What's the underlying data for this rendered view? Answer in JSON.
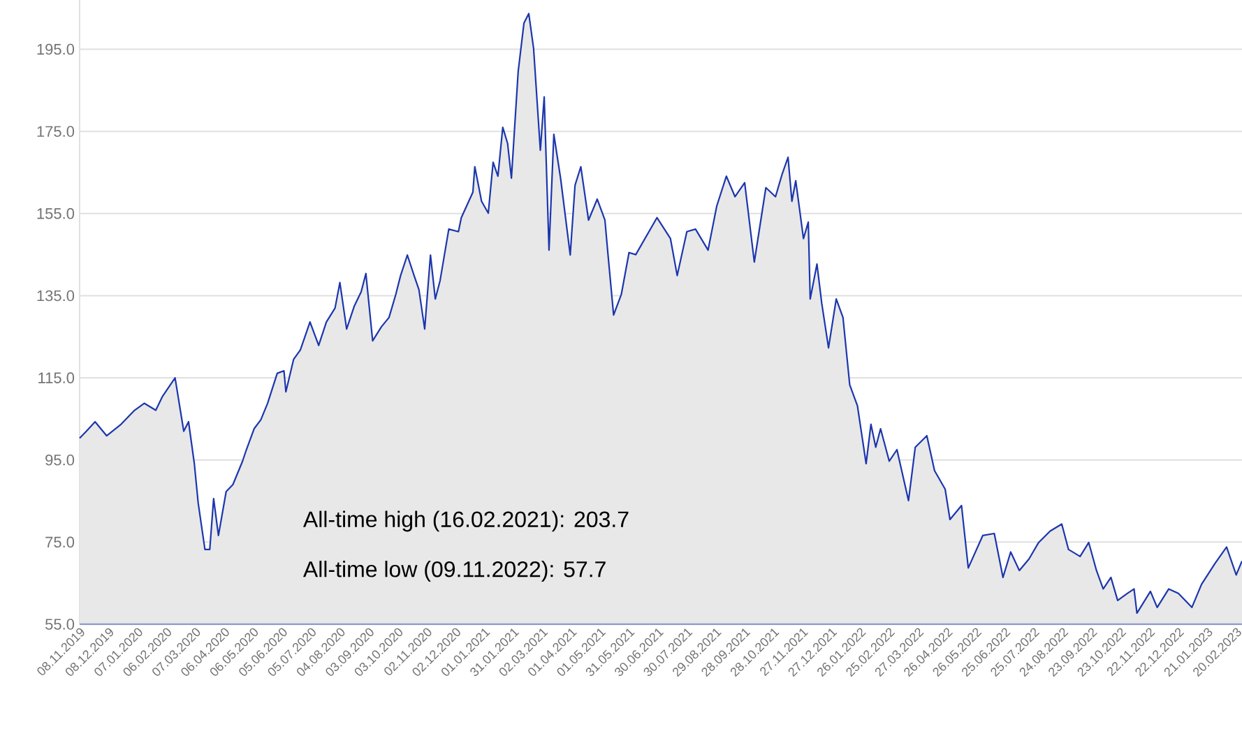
{
  "chart_data": {
    "type": "area",
    "x": [
      "2019-11-08",
      "2019-11-15",
      "2019-11-24",
      "2019-12-06",
      "2019-12-21",
      "2020-01-04",
      "2020-01-14",
      "2020-01-26",
      "2020-02-02",
      "2020-02-15",
      "2020-02-24",
      "2020-02-29",
      "2020-03-06",
      "2020-03-10",
      "2020-03-17",
      "2020-03-22",
      "2020-03-26",
      "2020-03-31",
      "2020-04-08",
      "2020-04-15",
      "2020-04-25",
      "2020-04-29",
      "2020-05-07",
      "2020-05-14",
      "2020-05-21",
      "2020-05-31",
      "2020-06-07",
      "2020-06-09",
      "2020-06-17",
      "2020-06-24",
      "2020-07-04",
      "2020-07-13",
      "2020-07-21",
      "2020-07-30",
      "2020-08-04",
      "2020-08-11",
      "2020-08-19",
      "2020-08-26",
      "2020-08-31",
      "2020-09-07",
      "2020-09-16",
      "2020-09-24",
      "2020-10-01",
      "2020-10-06",
      "2020-10-13",
      "2020-10-20",
      "2020-10-25",
      "2020-10-31",
      "2020-11-06",
      "2020-11-11",
      "2020-11-16",
      "2020-11-25",
      "2020-12-05",
      "2020-12-08",
      "2020-12-20",
      "2020-12-22",
      "2020-12-29",
      "2021-01-05",
      "2021-01-10",
      "2021-01-15",
      "2021-01-20",
      "2021-01-25",
      "2021-01-29",
      "2021-02-05",
      "2021-02-11",
      "2021-02-16",
      "2021-02-21",
      "2021-02-28",
      "2021-03-04",
      "2021-03-09",
      "2021-03-14",
      "2021-03-21",
      "2021-03-31",
      "2021-04-05",
      "2021-04-11",
      "2021-04-19",
      "2021-04-28",
      "2021-05-06",
      "2021-05-09",
      "2021-05-15",
      "2021-05-23",
      "2021-05-31",
      "2021-06-07",
      "2021-06-29",
      "2021-07-13",
      "2021-07-20",
      "2021-07-30",
      "2021-08-08",
      "2021-08-21",
      "2021-08-30",
      "2021-09-09",
      "2021-09-18",
      "2021-09-28",
      "2021-10-08",
      "2021-10-20",
      "2021-10-30",
      "2021-11-06",
      "2021-11-12",
      "2021-11-16",
      "2021-11-20",
      "2021-11-28",
      "2021-12-03",
      "2021-12-05",
      "2021-12-12",
      "2021-12-17",
      "2021-12-24",
      "2022-01-01",
      "2022-01-08",
      "2022-01-15",
      "2022-01-23",
      "2022-02-01",
      "2022-02-06",
      "2022-02-11",
      "2022-02-16",
      "2022-02-25",
      "2022-03-05",
      "2022-03-17",
      "2022-03-24",
      "2022-04-05",
      "2022-04-13",
      "2022-04-24",
      "2022-04-29",
      "2022-05-11",
      "2022-05-18",
      "2022-06-02",
      "2022-06-14",
      "2022-06-23",
      "2022-07-01",
      "2022-07-10",
      "2022-07-20",
      "2022-07-30",
      "2022-08-11",
      "2022-08-23",
      "2022-08-30",
      "2022-09-11",
      "2022-09-20",
      "2022-09-28",
      "2022-10-05",
      "2022-10-13",
      "2022-10-20",
      "2022-10-30",
      "2022-11-06",
      "2022-11-09",
      "2022-11-23",
      "2022-11-30",
      "2022-12-12",
      "2022-12-22",
      "2023-01-05",
      "2023-01-15",
      "2023-01-29",
      "2023-02-10",
      "2023-02-20",
      "2023-02-26"
    ],
    "series": [
      {
        "color": "#1c36ad",
        "values": [
          100.3,
          102.0,
          104.3,
          100.9,
          103.7,
          107.1,
          108.8,
          107.1,
          110.5,
          115.0,
          102.0,
          104.3,
          94.1,
          84.5,
          73.2,
          73.2,
          85.6,
          76.6,
          87.3,
          89.0,
          94.7,
          97.5,
          102.6,
          104.8,
          108.8,
          116.1,
          116.7,
          111.6,
          119.5,
          121.8,
          128.6,
          122.9,
          128.6,
          132.0,
          138.2,
          126.9,
          132.5,
          135.9,
          140.4,
          124.0,
          127.4,
          129.7,
          135.3,
          139.9,
          144.9,
          139.9,
          136.5,
          126.9,
          144.9,
          134.2,
          138.7,
          151.2,
          150.6,
          154.0,
          160.2,
          166.4,
          158.0,
          155.1,
          167.5,
          164.1,
          176.0,
          172.1,
          163.6,
          189.6,
          201.4,
          203.7,
          195.2,
          170.4,
          183.4,
          146.1,
          174.3,
          163.6,
          144.9,
          161.9,
          166.4,
          153.4,
          158.5,
          153.4,
          145.5,
          130.3,
          135.3,
          145.5,
          145.0,
          154.0,
          148.9,
          139.9,
          150.6,
          151.2,
          146.1,
          156.8,
          164.1,
          159.1,
          162.5,
          143.2,
          161.3,
          159.1,
          164.7,
          168.7,
          158.0,
          163.0,
          148.9,
          152.9,
          134.2,
          142.7,
          133.1,
          122.3,
          134.2,
          129.7,
          113.3,
          108.2,
          94.1,
          103.7,
          98.1,
          102.6,
          94.7,
          97.5,
          85.1,
          98.1,
          100.9,
          92.4,
          87.9,
          80.5,
          83.9,
          68.7,
          76.6,
          77.1,
          66.4,
          72.6,
          68.1,
          70.9,
          74.9,
          77.7,
          79.4,
          73.2,
          71.5,
          74.9,
          68.1,
          63.6,
          66.4,
          60.8,
          62.5,
          63.6,
          57.7,
          63.0,
          59.1,
          63.6,
          62.5,
          59.1,
          64.7,
          69.8,
          73.8,
          67.0,
          70.4
        ]
      }
    ],
    "xlim": [
      "2019-11-08",
      "2023-02-26"
    ],
    "xticks": [
      {
        "value": "2019-11-08",
        "label": "08.11.2019"
      },
      {
        "value": "2019-12-08",
        "label": "08.12.2019"
      },
      {
        "value": "2020-01-07",
        "label": "07.01.2020"
      },
      {
        "value": "2020-02-06",
        "label": "06.02.2020"
      },
      {
        "value": "2020-03-07",
        "label": "07.03.2020"
      },
      {
        "value": "2020-04-06",
        "label": "06.04.2020"
      },
      {
        "value": "2020-05-06",
        "label": "06.05.2020"
      },
      {
        "value": "2020-06-05",
        "label": "05.06.2020"
      },
      {
        "value": "2020-07-05",
        "label": "05.07.2020"
      },
      {
        "value": "2020-08-04",
        "label": "04.08.2020"
      },
      {
        "value": "2020-09-03",
        "label": "03.09.2020"
      },
      {
        "value": "2020-10-03",
        "label": "03.10.2020"
      },
      {
        "value": "2020-11-02",
        "label": "02.11.2020"
      },
      {
        "value": "2020-12-02",
        "label": "02.12.2020"
      },
      {
        "value": "2021-01-01",
        "label": "01.01.2021"
      },
      {
        "value": "2021-01-31",
        "label": "31.01.2021"
      },
      {
        "value": "2021-03-02",
        "label": "02.03.2021"
      },
      {
        "value": "2021-04-01",
        "label": "01.04.2021"
      },
      {
        "value": "2021-05-01",
        "label": "01.05.2021"
      },
      {
        "value": "2021-05-31",
        "label": "31.05.2021"
      },
      {
        "value": "2021-06-30",
        "label": "30.06.2021"
      },
      {
        "value": "2021-07-30",
        "label": "30.07.2021"
      },
      {
        "value": "2021-08-29",
        "label": "29.08.2021"
      },
      {
        "value": "2021-09-28",
        "label": "28.09.2021"
      },
      {
        "value": "2021-10-28",
        "label": "28.10.2021"
      },
      {
        "value": "2021-11-27",
        "label": "27.11.2021"
      },
      {
        "value": "2021-12-27",
        "label": "27.12.2021"
      },
      {
        "value": "2022-01-26",
        "label": "26.01.2022"
      },
      {
        "value": "2022-02-25",
        "label": "25.02.2022"
      },
      {
        "value": "2022-03-27",
        "label": "27.03.2022"
      },
      {
        "value": "2022-04-26",
        "label": "26.04.2022"
      },
      {
        "value": "2022-05-26",
        "label": "26.05.2022"
      },
      {
        "value": "2022-06-25",
        "label": "25.06.2022"
      },
      {
        "value": "2022-07-25",
        "label": "25.07.2022"
      },
      {
        "value": "2022-08-24",
        "label": "24.08.2022"
      },
      {
        "value": "2022-09-23",
        "label": "23.09.2022"
      },
      {
        "value": "2022-10-23",
        "label": "23.10.2022"
      },
      {
        "value": "2022-11-22",
        "label": "22.11.2022"
      },
      {
        "value": "2022-12-22",
        "label": "22.12.2022"
      },
      {
        "value": "2023-01-21",
        "label": "21.01.2023"
      },
      {
        "value": "2023-02-20",
        "label": "20.02.2023"
      }
    ],
    "ylim": [
      55,
      207
    ],
    "yticks": [
      {
        "value": 55,
        "label": "55.0"
      },
      {
        "value": 75,
        "label": "75.0"
      },
      {
        "value": 95,
        "label": "95.0"
      },
      {
        "value": 115,
        "label": "115.0"
      },
      {
        "value": 135,
        "label": "135.0"
      },
      {
        "value": 155,
        "label": "155.0"
      },
      {
        "value": 175,
        "label": "175.0"
      },
      {
        "value": 195,
        "label": "195.0"
      }
    ],
    "grid": "y",
    "annotations": [
      "All-time high (16.02.2021): 203.7",
      "All-time low (09.11.2022): 57.7"
    ]
  }
}
